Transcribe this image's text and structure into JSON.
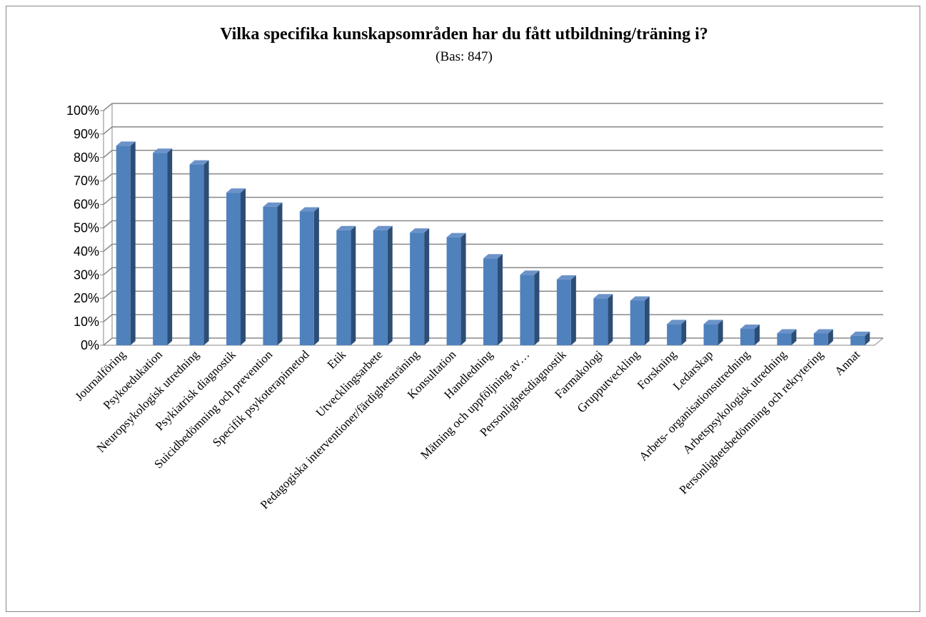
{
  "chart_data": {
    "type": "bar3d",
    "title": "Vilka specifika kunskapsområden har du fått utbildning/träning i?",
    "subtitle": "(Bas: 847)",
    "categories": [
      "Journalföring",
      "Psykoedukation",
      "Neuropsykologisk utredning",
      "Psykiatrisk diagnostik",
      "Suicidbedömning och prevention",
      "Specifik psykoterapimetod",
      "Etik",
      "Utvecklingsarbete",
      "Pedagogiska interventioner/färdighetsträning",
      "Konsultation",
      "Handledning",
      "Mätning och uppföljning av…",
      "Personlighetsdiagnostik",
      "Farmakologi",
      "Grupputveckling",
      "Forskning",
      "Ledarskap",
      "Arbets- organisationsutredning",
      "Arbetspsykologisk utredning",
      "Personlighetsbedömning och rekrytering",
      "Annat"
    ],
    "values": [
      85,
      82,
      77,
      65,
      59,
      57,
      49,
      49,
      48,
      46,
      37,
      30,
      28,
      20,
      19,
      9,
      9,
      7,
      5,
      5,
      4
    ],
    "color": "#4f81bd",
    "ylim": [
      0,
      100
    ],
    "yticks": [
      {
        "value": 0,
        "label": "0%"
      },
      {
        "value": 10,
        "label": "10%"
      },
      {
        "value": 20,
        "label": "20%"
      },
      {
        "value": 30,
        "label": "30%"
      },
      {
        "value": 40,
        "label": "40%"
      },
      {
        "value": 50,
        "label": "50%"
      },
      {
        "value": 60,
        "label": "60%"
      },
      {
        "value": 70,
        "label": "70%"
      },
      {
        "value": 80,
        "label": "80%"
      },
      {
        "value": 90,
        "label": "90%"
      },
      {
        "value": 100,
        "label": "100%"
      }
    ],
    "grid": true
  }
}
